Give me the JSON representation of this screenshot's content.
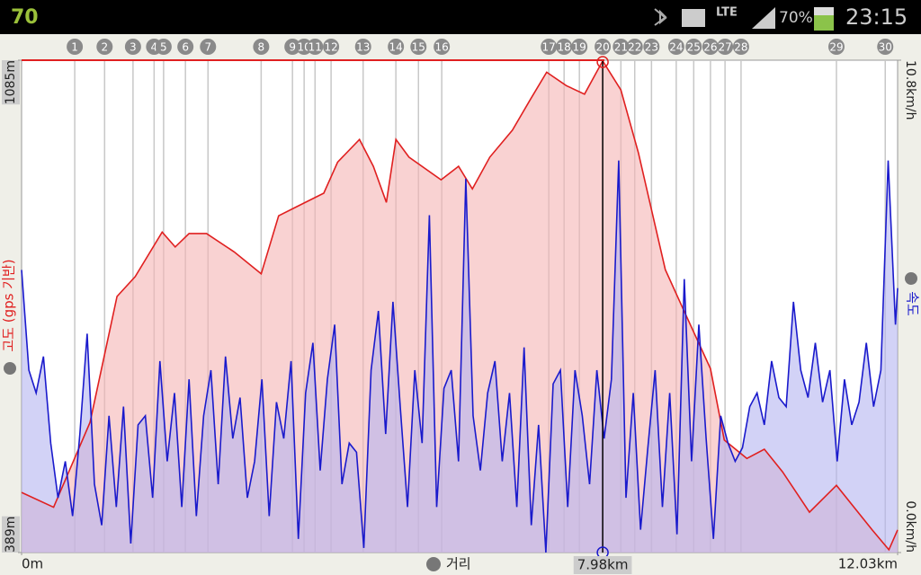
{
  "status_bar": {
    "app_badge": "70",
    "network": "LTE",
    "battery": "70%",
    "time": "23:15"
  },
  "chart_data": {
    "type": "area",
    "x_label": "거리",
    "xlim": [
      0,
      12.03
    ],
    "xticks": [
      {
        "value": 0,
        "label": "0m"
      },
      {
        "value": 12.03,
        "label": "12.03km"
      }
    ],
    "ylim": [
      389,
      1085
    ],
    "yticks": [
      {
        "value": 389,
        "label": "389m"
      },
      {
        "value": 1085,
        "label": "1085m"
      }
    ],
    "y2lim": [
      0,
      10.8
    ],
    "y2ticks": [
      {
        "value": 0,
        "label": "0.0km/h"
      },
      {
        "value": 10.8,
        "label": "10.8km/h"
      }
    ],
    "cursor": {
      "value": 7.98,
      "label": "7.98km"
    },
    "waypoints": [
      {
        "label": "1",
        "x": 0.73
      },
      {
        "label": "2",
        "x": 1.14
      },
      {
        "label": "3",
        "x": 1.53
      },
      {
        "label": "4",
        "x": 1.82
      },
      {
        "label": "5",
        "x": 1.95
      },
      {
        "label": "6",
        "x": 2.25
      },
      {
        "label": "7",
        "x": 2.56
      },
      {
        "label": "8",
        "x": 3.29
      },
      {
        "label": "9",
        "x": 3.72
      },
      {
        "label": "10",
        "x": 3.88
      },
      {
        "label": "11",
        "x": 4.03
      },
      {
        "label": "12",
        "x": 4.25
      },
      {
        "label": "13",
        "x": 4.69
      },
      {
        "label": "14",
        "x": 5.14
      },
      {
        "label": "15",
        "x": 5.45
      },
      {
        "label": "16",
        "x": 5.77
      },
      {
        "label": "17",
        "x": 7.24
      },
      {
        "label": "18",
        "x": 7.45
      },
      {
        "label": "19",
        "x": 7.66
      },
      {
        "label": "20",
        "x": 7.98
      },
      {
        "label": "21",
        "x": 8.23
      },
      {
        "label": "22",
        "x": 8.42
      },
      {
        "label": "23",
        "x": 8.65
      },
      {
        "label": "24",
        "x": 8.99
      },
      {
        "label": "25",
        "x": 9.23
      },
      {
        "label": "26",
        "x": 9.46
      },
      {
        "label": "27",
        "x": 9.66
      },
      {
        "label": "28",
        "x": 9.88
      },
      {
        "label": "29",
        "x": 11.19
      },
      {
        "label": "30",
        "x": 11.86
      }
    ],
    "series": [
      {
        "name": "고도 (gps 기반)",
        "color": "#e02020",
        "fill": "#f5b4b4",
        "x": [
          0,
          0.44,
          0.94,
          1.31,
          1.56,
          1.93,
          2.11,
          2.3,
          2.54,
          2.92,
          3.29,
          3.53,
          3.78,
          4.15,
          4.34,
          4.64,
          4.83,
          5.01,
          5.14,
          5.32,
          5.76,
          6.0,
          6.19,
          6.43,
          6.74,
          6.99,
          7.21,
          7.48,
          7.73,
          7.98,
          8.23,
          8.47,
          8.84,
          9.09,
          9.46,
          9.65,
          9.96,
          10.2,
          10.45,
          10.82,
          11.19,
          11.68,
          11.91,
          12.03
        ],
        "values": [
          474,
          453,
          573,
          751,
          779,
          842,
          821,
          840,
          840,
          814,
          783,
          865,
          878,
          897,
          941,
          973,
          935,
          884,
          973,
          948,
          916,
          935,
          903,
          948,
          986,
          1030,
          1068,
          1049,
          1037,
          1084,
          1043,
          954,
          789,
          732,
          649,
          548,
          522,
          535,
          503,
          446,
          484,
          421,
          393,
          421
        ]
      },
      {
        "name": "속도",
        "color": "#1a1acc",
        "fill": "#b4b4f0",
        "axis": "y2",
        "x": [
          0,
          0.1,
          0.2,
          0.3,
          0.4,
          0.5,
          0.6,
          0.7,
          0.8,
          0.9,
          1.0,
          1.1,
          1.2,
          1.3,
          1.4,
          1.5,
          1.6,
          1.7,
          1.8,
          1.9,
          2.0,
          2.1,
          2.2,
          2.3,
          2.4,
          2.5,
          2.6,
          2.7,
          2.8,
          2.9,
          3.0,
          3.1,
          3.2,
          3.3,
          3.4,
          3.5,
          3.6,
          3.7,
          3.8,
          3.9,
          4.0,
          4.1,
          4.2,
          4.3,
          4.4,
          4.5,
          4.6,
          4.7,
          4.8,
          4.9,
          5.0,
          5.1,
          5.2,
          5.3,
          5.4,
          5.5,
          5.6,
          5.7,
          5.8,
          5.9,
          6.0,
          6.1,
          6.2,
          6.3,
          6.4,
          6.5,
          6.6,
          6.7,
          6.8,
          6.9,
          7.0,
          7.1,
          7.2,
          7.3,
          7.4,
          7.5,
          7.6,
          7.7,
          7.8,
          7.9,
          8.0,
          8.1,
          8.2,
          8.3,
          8.4,
          8.5,
          8.6,
          8.7,
          8.8,
          8.9,
          9.0,
          9.1,
          9.2,
          9.3,
          9.4,
          9.5,
          9.6,
          9.7,
          9.8,
          9.9,
          10.0,
          10.1,
          10.2,
          10.3,
          10.4,
          10.5,
          10.6,
          10.7,
          10.8,
          10.9,
          11.0,
          11.1,
          11.2,
          11.3,
          11.4,
          11.5,
          11.6,
          11.7,
          11.8,
          11.9,
          12.0,
          12.03
        ],
        "values": [
          6.2,
          4.0,
          3.5,
          4.3,
          2.4,
          1.2,
          2.0,
          0.8,
          2.6,
          4.8,
          1.5,
          0.6,
          3.0,
          1.0,
          3.2,
          0.2,
          2.8,
          3.0,
          1.2,
          4.2,
          2.0,
          3.5,
          1.0,
          3.8,
          0.8,
          3.0,
          4.0,
          1.5,
          4.3,
          2.5,
          3.4,
          1.2,
          2.0,
          3.8,
          0.8,
          3.3,
          2.5,
          4.2,
          0.3,
          3.5,
          4.6,
          1.8,
          3.8,
          5.0,
          1.5,
          2.4,
          2.2,
          0.1,
          4.0,
          5.3,
          2.6,
          5.5,
          3.2,
          1.0,
          4.0,
          2.4,
          7.4,
          1.0,
          3.6,
          4.0,
          2.0,
          8.2,
          3.0,
          1.8,
          3.5,
          4.2,
          2.0,
          3.5,
          1.0,
          4.5,
          0.6,
          2.8,
          0.0,
          3.7,
          4.0,
          1.0,
          4.0,
          3.0,
          1.5,
          4.0,
          2.5,
          3.8,
          8.6,
          1.2,
          3.5,
          0.5,
          2.3,
          4.0,
          1.0,
          3.5,
          0.4,
          6.0,
          2.0,
          5.0,
          2.5,
          0.3,
          3.0,
          2.4,
          2.0,
          2.3,
          3.2,
          3.5,
          2.8,
          4.2,
          3.4,
          3.2,
          5.5,
          4.0,
          3.4,
          4.6,
          3.3,
          4.0,
          2.0,
          3.8,
          2.8,
          3.3,
          4.6,
          3.2,
          4.0,
          8.6,
          5.0,
          5.8
        ]
      }
    ]
  }
}
